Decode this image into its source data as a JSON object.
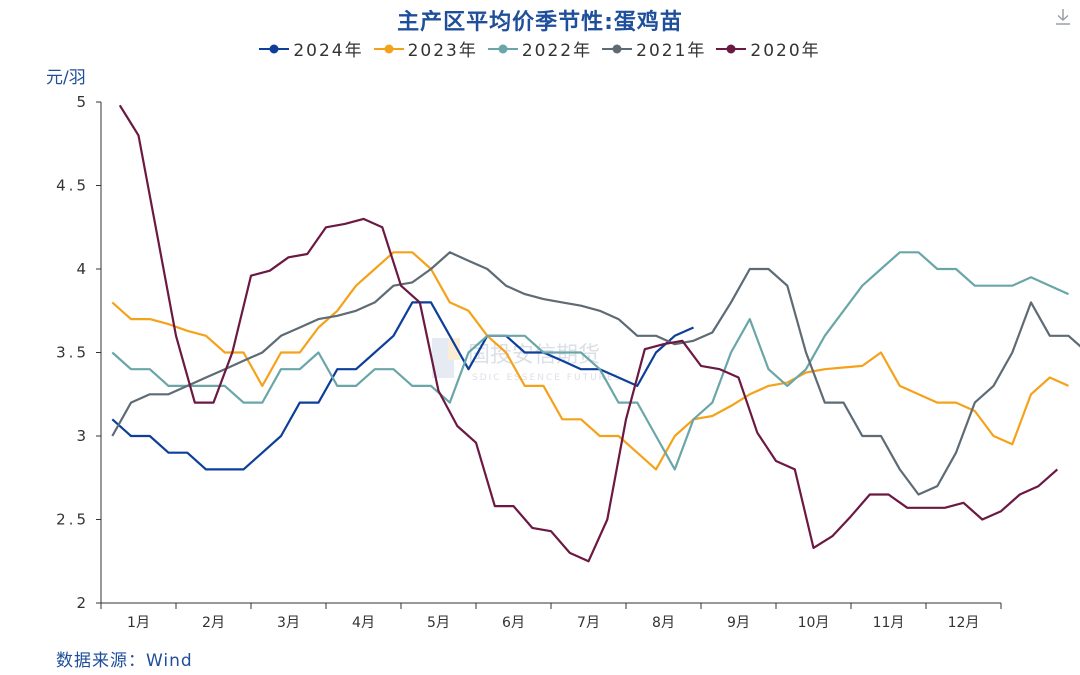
{
  "chart_data": {
    "type": "line",
    "title": "主产区平均价季节性:蛋鸡苗",
    "ylabel": "元/羽",
    "ylim": [
      2,
      5
    ],
    "yticks": [
      "2",
      "2.5",
      "3",
      "3.5",
      "4",
      "4.5",
      "5"
    ],
    "months": [
      "1月",
      "2月",
      "3月",
      "4月",
      "5月",
      "6月",
      "7月",
      "8月",
      "9月",
      "10月",
      "11月",
      "12月"
    ],
    "grid": false,
    "legend_position": "top",
    "series": [
      {
        "name": "2024年",
        "color": "#0d3f9a",
        "points": [
          [
            0.0,
            3.1
          ],
          [
            0.25,
            3.0
          ],
          [
            0.5,
            3.0
          ],
          [
            0.75,
            2.9
          ],
          [
            1.0,
            2.9
          ],
          [
            1.25,
            2.8
          ],
          [
            1.5,
            2.8
          ],
          [
            1.75,
            2.8
          ],
          [
            2.0,
            2.9
          ],
          [
            2.25,
            3.0
          ],
          [
            2.5,
            3.2
          ],
          [
            2.75,
            3.2
          ],
          [
            3.0,
            3.4
          ],
          [
            3.25,
            3.4
          ],
          [
            3.5,
            3.5
          ],
          [
            3.75,
            3.6
          ],
          [
            4.0,
            3.8
          ],
          [
            4.25,
            3.8
          ],
          [
            4.5,
            3.6
          ],
          [
            4.75,
            3.4
          ],
          [
            5.0,
            3.6
          ],
          [
            5.25,
            3.6
          ],
          [
            5.5,
            3.5
          ],
          [
            5.75,
            3.5
          ],
          [
            6.0,
            3.45
          ],
          [
            6.25,
            3.4
          ],
          [
            6.5,
            3.4
          ],
          [
            6.75,
            3.35
          ],
          [
            7.0,
            3.3
          ],
          [
            7.25,
            3.5
          ],
          [
            7.5,
            3.6
          ],
          [
            7.75,
            3.65
          ]
        ]
      },
      {
        "name": "2023年",
        "color": "#f5a21b",
        "points": [
          [
            0.0,
            3.8
          ],
          [
            0.25,
            3.7
          ],
          [
            0.5,
            3.7
          ],
          [
            0.75,
            3.67
          ],
          [
            1.0,
            3.63
          ],
          [
            1.25,
            3.6
          ],
          [
            1.5,
            3.5
          ],
          [
            1.75,
            3.5
          ],
          [
            2.0,
            3.3
          ],
          [
            2.25,
            3.5
          ],
          [
            2.5,
            3.5
          ],
          [
            2.75,
            3.65
          ],
          [
            3.0,
            3.75
          ],
          [
            3.25,
            3.9
          ],
          [
            3.5,
            4.0
          ],
          [
            3.75,
            4.1
          ],
          [
            4.0,
            4.1
          ],
          [
            4.25,
            4.0
          ],
          [
            4.5,
            3.8
          ],
          [
            4.75,
            3.75
          ],
          [
            5.0,
            3.6
          ],
          [
            5.25,
            3.5
          ],
          [
            5.5,
            3.3
          ],
          [
            5.75,
            3.3
          ],
          [
            6.0,
            3.1
          ],
          [
            6.25,
            3.1
          ],
          [
            6.5,
            3.0
          ],
          [
            6.75,
            3.0
          ],
          [
            7.0,
            2.9
          ],
          [
            7.25,
            2.8
          ],
          [
            7.5,
            3.0
          ],
          [
            7.75,
            3.1
          ],
          [
            8.0,
            3.12
          ],
          [
            8.25,
            3.18
          ],
          [
            8.5,
            3.25
          ],
          [
            8.75,
            3.3
          ],
          [
            9.0,
            3.32
          ],
          [
            9.25,
            3.38
          ],
          [
            9.5,
            3.4
          ],
          [
            9.75,
            3.41
          ],
          [
            10.0,
            3.42
          ],
          [
            10.25,
            3.5
          ],
          [
            10.5,
            3.3
          ],
          [
            10.75,
            3.25
          ],
          [
            11.0,
            3.2
          ],
          [
            11.25,
            3.2
          ],
          [
            11.5,
            3.15
          ],
          [
            11.75,
            3.0
          ],
          [
            12.0,
            2.95
          ],
          [
            12.25,
            3.25
          ],
          [
            12.5,
            3.35
          ],
          [
            12.75,
            3.3
          ]
        ]
      },
      {
        "name": "2022年",
        "color": "#6aa6a8",
        "points": [
          [
            0.0,
            3.5
          ],
          [
            0.25,
            3.4
          ],
          [
            0.5,
            3.4
          ],
          [
            0.75,
            3.3
          ],
          [
            1.0,
            3.3
          ],
          [
            1.25,
            3.3
          ],
          [
            1.5,
            3.3
          ],
          [
            1.75,
            3.2
          ],
          [
            2.0,
            3.2
          ],
          [
            2.25,
            3.4
          ],
          [
            2.5,
            3.4
          ],
          [
            2.75,
            3.5
          ],
          [
            3.0,
            3.3
          ],
          [
            3.25,
            3.3
          ],
          [
            3.5,
            3.4
          ],
          [
            3.75,
            3.4
          ],
          [
            4.0,
            3.3
          ],
          [
            4.25,
            3.3
          ],
          [
            4.5,
            3.2
          ],
          [
            4.75,
            3.5
          ],
          [
            5.0,
            3.6
          ],
          [
            5.25,
            3.6
          ],
          [
            5.5,
            3.6
          ],
          [
            5.75,
            3.5
          ],
          [
            6.0,
            3.5
          ],
          [
            6.25,
            3.5
          ],
          [
            6.5,
            3.4
          ],
          [
            6.75,
            3.2
          ],
          [
            7.0,
            3.2
          ],
          [
            7.25,
            3.0
          ],
          [
            7.5,
            2.8
          ],
          [
            7.75,
            3.1
          ],
          [
            8.0,
            3.2
          ],
          [
            8.25,
            3.5
          ],
          [
            8.5,
            3.7
          ],
          [
            8.75,
            3.4
          ],
          [
            9.0,
            3.3
          ],
          [
            9.25,
            3.4
          ],
          [
            9.5,
            3.6
          ],
          [
            9.75,
            3.75
          ],
          [
            10.0,
            3.9
          ],
          [
            10.25,
            4.0
          ],
          [
            10.5,
            4.1
          ],
          [
            10.75,
            4.1
          ],
          [
            11.0,
            4.0
          ],
          [
            11.25,
            4.0
          ],
          [
            11.5,
            3.9
          ],
          [
            11.75,
            3.9
          ],
          [
            12.0,
            3.9
          ],
          [
            12.25,
            3.95
          ],
          [
            12.5,
            3.9
          ],
          [
            12.75,
            3.85
          ]
        ]
      },
      {
        "name": "2021年",
        "color": "#5e6b75",
        "points": [
          [
            0.0,
            3.0
          ],
          [
            0.25,
            3.2
          ],
          [
            0.5,
            3.25
          ],
          [
            0.75,
            3.25
          ],
          [
            1.0,
            3.3
          ],
          [
            1.25,
            3.35
          ],
          [
            1.5,
            3.4
          ],
          [
            1.75,
            3.45
          ],
          [
            2.0,
            3.5
          ],
          [
            2.25,
            3.6
          ],
          [
            2.5,
            3.65
          ],
          [
            2.75,
            3.7
          ],
          [
            3.0,
            3.72
          ],
          [
            3.25,
            3.75
          ],
          [
            3.5,
            3.8
          ],
          [
            3.75,
            3.9
          ],
          [
            4.0,
            3.92
          ],
          [
            4.25,
            4.0
          ],
          [
            4.5,
            4.1
          ],
          [
            4.75,
            4.05
          ],
          [
            5.0,
            4.0
          ],
          [
            5.25,
            3.9
          ],
          [
            5.5,
            3.85
          ],
          [
            5.75,
            3.82
          ],
          [
            6.0,
            3.8
          ],
          [
            6.25,
            3.78
          ],
          [
            6.5,
            3.75
          ],
          [
            6.75,
            3.7
          ],
          [
            7.0,
            3.6
          ],
          [
            7.25,
            3.6
          ],
          [
            7.5,
            3.55
          ],
          [
            7.75,
            3.57
          ],
          [
            8.0,
            3.62
          ],
          [
            8.25,
            3.8
          ],
          [
            8.5,
            4.0
          ],
          [
            8.75,
            4.0
          ],
          [
            9.0,
            3.9
          ],
          [
            9.25,
            3.5
          ],
          [
            9.5,
            3.2
          ],
          [
            9.75,
            3.2
          ],
          [
            10.0,
            3.0
          ],
          [
            10.25,
            3.0
          ],
          [
            10.5,
            2.8
          ],
          [
            10.75,
            2.65
          ],
          [
            11.0,
            2.7
          ],
          [
            11.25,
            2.9
          ],
          [
            11.5,
            3.2
          ],
          [
            11.75,
            3.3
          ],
          [
            12.0,
            3.5
          ],
          [
            12.25,
            3.8
          ],
          [
            12.5,
            3.6
          ],
          [
            12.75,
            3.6
          ],
          [
            13.0,
            3.5
          ]
        ]
      },
      {
        "name": "2020年",
        "color": "#6b1942",
        "points": [
          [
            0.1,
            4.98
          ],
          [
            0.35,
            4.8
          ],
          [
            0.6,
            4.2
          ],
          [
            0.85,
            3.6
          ],
          [
            1.1,
            3.2
          ],
          [
            1.35,
            3.2
          ],
          [
            1.6,
            3.5
          ],
          [
            1.85,
            3.96
          ],
          [
            2.1,
            3.99
          ],
          [
            2.35,
            4.07
          ],
          [
            2.6,
            4.09
          ],
          [
            2.85,
            4.25
          ],
          [
            3.1,
            4.27
          ],
          [
            3.35,
            4.3
          ],
          [
            3.6,
            4.25
          ],
          [
            3.85,
            3.9
          ],
          [
            4.1,
            3.8
          ],
          [
            4.35,
            3.27
          ],
          [
            4.6,
            3.06
          ],
          [
            4.85,
            2.96
          ],
          [
            5.1,
            2.58
          ],
          [
            5.35,
            2.58
          ],
          [
            5.6,
            2.45
          ],
          [
            5.85,
            2.43
          ],
          [
            6.1,
            2.3
          ],
          [
            6.35,
            2.25
          ],
          [
            6.6,
            2.5
          ],
          [
            6.85,
            3.1
          ],
          [
            7.1,
            3.52
          ],
          [
            7.35,
            3.55
          ],
          [
            7.6,
            3.57
          ],
          [
            7.85,
            3.42
          ],
          [
            8.1,
            3.4
          ],
          [
            8.35,
            3.35
          ],
          [
            8.6,
            3.02
          ],
          [
            8.85,
            2.85
          ],
          [
            9.1,
            2.8
          ],
          [
            9.35,
            2.33
          ],
          [
            9.6,
            2.4
          ],
          [
            9.85,
            2.52
          ],
          [
            10.1,
            2.65
          ],
          [
            10.35,
            2.65
          ],
          [
            10.6,
            2.57
          ],
          [
            10.85,
            2.57
          ],
          [
            11.1,
            2.57
          ],
          [
            11.35,
            2.6
          ],
          [
            11.6,
            2.5
          ],
          [
            11.85,
            2.55
          ],
          [
            12.1,
            2.65
          ],
          [
            12.35,
            2.7
          ],
          [
            12.6,
            2.8
          ]
        ]
      }
    ]
  },
  "legend": [
    {
      "label": "2024年",
      "color": "#0d3f9a"
    },
    {
      "label": "2023年",
      "color": "#f5a21b"
    },
    {
      "label": "2022年",
      "color": "#6aa6a8"
    },
    {
      "label": "2021年",
      "color": "#5e6b75"
    },
    {
      "label": "2020年",
      "color": "#6b1942"
    }
  ],
  "watermark": {
    "cn": "国投安信期货",
    "en": "SDIC ESSENCE FUTURES"
  },
  "source": "数据来源：Wind",
  "icons": {
    "download": "download-icon"
  }
}
